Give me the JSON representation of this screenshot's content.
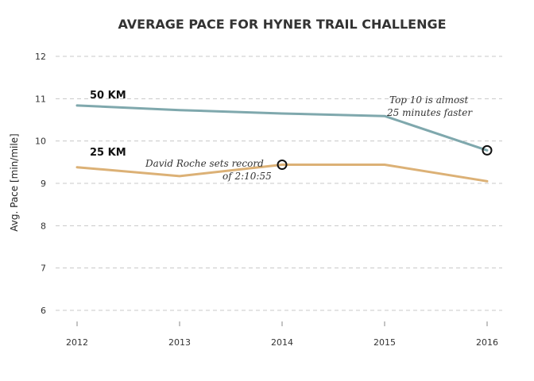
{
  "chart_data": {
    "type": "line",
    "title": "AVERAGE PACE FOR HYNER TRAIL CHALLENGE",
    "xlabel": "",
    "ylabel": "Avg. Pace [min/mile]",
    "x": [
      2012,
      2013,
      2014,
      2015,
      2016
    ],
    "ylim": [
      6,
      12
    ],
    "yticks": [
      6,
      7,
      8,
      9,
      10,
      11,
      12
    ],
    "grid": true,
    "series": [
      {
        "name": "50 KM",
        "color": "#7fa8ad",
        "values": [
          10.84,
          10.73,
          10.65,
          10.59,
          9.78
        ]
      },
      {
        "name": "25 KM",
        "color": "#dcb176",
        "values": [
          9.38,
          9.17,
          9.44,
          9.44,
          9.05
        ]
      }
    ],
    "markers": [
      {
        "series": "50 KM",
        "x": 2016,
        "y": 9.78
      },
      {
        "series": "25 KM",
        "x": 2014,
        "y": 9.44
      }
    ],
    "annotations": [
      {
        "lines": [
          "David Roche sets record",
          "of 2:10:55"
        ]
      },
      {
        "lines": [
          "Top 10 is almost",
          "25 minutes faster"
        ]
      }
    ]
  }
}
